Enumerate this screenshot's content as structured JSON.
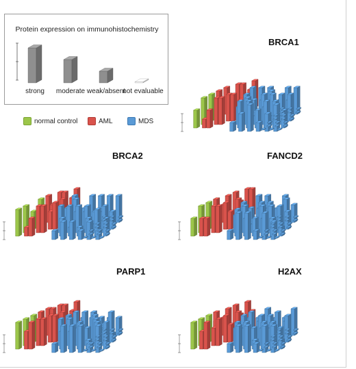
{
  "legend": {
    "title": "Protein expression on immunohistochemistry",
    "levels": [
      {
        "label": "strong",
        "value": 3
      },
      {
        "label": "moderate",
        "value": 2
      },
      {
        "label": "weak/absent",
        "value": 1
      },
      {
        "label": "not evaluable",
        "value": 0
      }
    ]
  },
  "groups": [
    {
      "label": "normal control",
      "color": "#9cc64a"
    },
    {
      "label": "AML",
      "color": "#d9534c"
    },
    {
      "label": "MDS",
      "color": "#5a9ad6"
    }
  ],
  "chart_data": [
    {
      "type": "bar3d",
      "title": "BRCA1",
      "rows": [
        {
          "group": "normal control",
          "values": [
            2,
            3,
            3,
            2
          ]
        },
        {
          "group": "AML",
          "values": [
            1,
            2,
            3,
            3,
            3,
            3,
            2,
            3,
            3,
            2,
            3,
            3,
            2,
            3
          ]
        },
        {
          "group": "MDS",
          "values": [
            1,
            3,
            2,
            3,
            1,
            3,
            2,
            3,
            3,
            1,
            2,
            3,
            3,
            2,
            1,
            3,
            2,
            3,
            1,
            3,
            2,
            3,
            3,
            1,
            2,
            3,
            1,
            3,
            2,
            3,
            3,
            2,
            1,
            3,
            2,
            3
          ]
        }
      ]
    },
    {
      "type": "bar3d",
      "title": "BRCA2",
      "rows": [
        {
          "group": "normal control",
          "values": [
            3,
            3,
            2,
            3
          ]
        },
        {
          "group": "AML",
          "values": [
            1,
            2,
            3,
            3,
            2,
            3,
            3,
            2,
            3,
            2,
            3,
            3,
            2,
            3
          ]
        },
        {
          "group": "MDS",
          "values": [
            1,
            2,
            3,
            1,
            2,
            3,
            2,
            1,
            3,
            2,
            3,
            1,
            2,
            1,
            3,
            2,
            2,
            3,
            1,
            2,
            3,
            2,
            1,
            3,
            2,
            3,
            1,
            2,
            2,
            3,
            1,
            2,
            3,
            2,
            1,
            3
          ]
        }
      ]
    },
    {
      "type": "bar3d",
      "title": "FANCD2",
      "rows": [
        {
          "group": "normal control",
          "values": [
            2,
            3,
            3,
            3
          ]
        },
        {
          "group": "AML",
          "values": [
            2,
            2,
            3,
            3,
            3,
            2,
            3,
            3,
            2,
            3,
            3,
            2,
            3,
            3
          ]
        },
        {
          "group": "MDS",
          "values": [
            1,
            3,
            2,
            3,
            2,
            1,
            3,
            2,
            3,
            1,
            2,
            3,
            3,
            2,
            1,
            3,
            2,
            3,
            1,
            2,
            3,
            3,
            2,
            1,
            3,
            2,
            3,
            1,
            2,
            3,
            2,
            1,
            3,
            2,
            3,
            2
          ]
        }
      ]
    },
    {
      "type": "bar3d",
      "title": "PARP1",
      "rows": [
        {
          "group": "normal control",
          "values": [
            3,
            3,
            3,
            3
          ]
        },
        {
          "group": "AML",
          "values": [
            2,
            3,
            3,
            3,
            3,
            3,
            3,
            3,
            3,
            3,
            3,
            3,
            2,
            3
          ]
        },
        {
          "group": "MDS",
          "values": [
            1,
            2,
            3,
            3,
            1,
            2,
            3,
            2,
            3,
            1,
            3,
            2,
            3,
            3,
            2,
            1,
            3,
            2,
            3,
            1,
            2,
            3,
            3,
            2,
            1,
            3,
            3,
            2,
            1,
            2,
            3,
            3,
            2,
            1,
            3,
            2
          ]
        }
      ]
    },
    {
      "type": "bar3d",
      "title": "H2AX",
      "rows": [
        {
          "group": "normal control",
          "values": [
            3,
            3,
            3,
            2
          ]
        },
        {
          "group": "AML",
          "values": [
            2,
            3,
            2,
            3,
            3,
            2,
            3,
            3,
            2,
            3,
            3,
            2,
            3,
            2
          ]
        },
        {
          "group": "MDS",
          "values": [
            1,
            3,
            2,
            3,
            1,
            2,
            3,
            3,
            2,
            1,
            3,
            2,
            3,
            1,
            2,
            3,
            2,
            3,
            1,
            3,
            2,
            3,
            1,
            2,
            3,
            3,
            2,
            1,
            3,
            2,
            3,
            1,
            2,
            3,
            2,
            3
          ]
        }
      ]
    }
  ]
}
